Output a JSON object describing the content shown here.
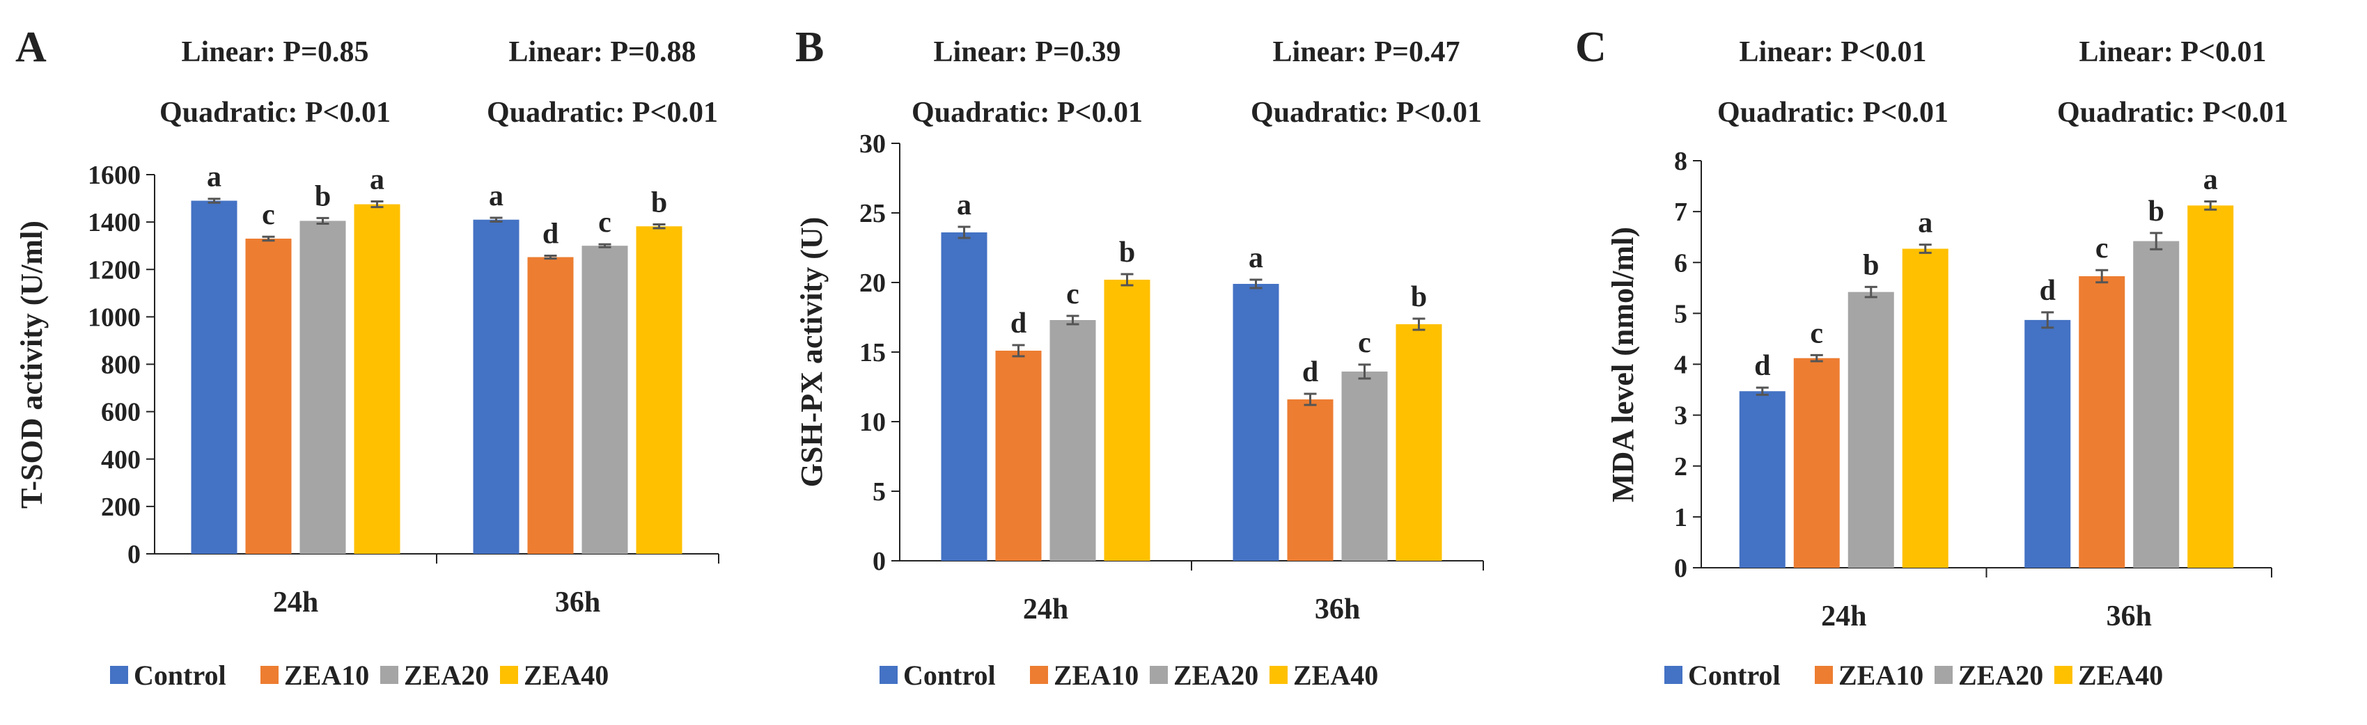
{
  "figure": {
    "series_names": [
      "Control",
      "ZEA10",
      "ZEA20",
      "ZEA40"
    ],
    "series_colors": [
      "#4472C4",
      "#ED7D31",
      "#A5A5A5",
      "#FFC000"
    ],
    "axis_color": "#222222",
    "error_bar_color": "#555555"
  },
  "chart_data": [
    {
      "type": "bar",
      "panel_label": "A",
      "ylabel": "T-SOD activity (U/ml)",
      "ylim": [
        0,
        1600
      ],
      "ytick_step": 200,
      "yticks": [
        "0",
        "200",
        "400",
        "600",
        "800",
        "1000",
        "1200",
        "1400",
        "1600"
      ],
      "categories": [
        "24h",
        "36h"
      ],
      "stats": [
        {
          "linear": "Linear: P=0.85",
          "quadratic": "Quadratic: P<0.01"
        },
        {
          "linear": "Linear: P=0.88",
          "quadratic": "Quadratic: P<0.01"
        }
      ],
      "series": [
        {
          "name": "Control",
          "values": [
            1490,
            1410
          ],
          "errors": [
            8,
            8
          ],
          "letters": [
            "a",
            "a"
          ]
        },
        {
          "name": "ZEA10",
          "values": [
            1330,
            1252
          ],
          "errors": [
            8,
            6
          ],
          "letters": [
            "c",
            "d"
          ]
        },
        {
          "name": "ZEA20",
          "values": [
            1405,
            1300
          ],
          "errors": [
            12,
            6
          ],
          "letters": [
            "b",
            "c"
          ]
        },
        {
          "name": "ZEA40",
          "values": [
            1475,
            1382
          ],
          "errors": [
            12,
            8
          ],
          "letters": [
            "a",
            "b"
          ]
        }
      ]
    },
    {
      "type": "bar",
      "panel_label": "B",
      "ylabel": "GSH-PX activity (U)",
      "ylim": [
        0,
        30
      ],
      "ytick_step": 5,
      "yticks": [
        "0",
        "5",
        "10",
        "15",
        "20",
        "25",
        "30"
      ],
      "categories": [
        "24h",
        "36h"
      ],
      "stats": [
        {
          "linear": "Linear: P=0.39",
          "quadratic": "Quadratic: P<0.01"
        },
        {
          "linear": "Linear: P=0.47",
          "quadratic": "Quadratic: P<0.01"
        }
      ],
      "series": [
        {
          "name": "Control",
          "values": [
            23.6,
            19.9
          ],
          "errors": [
            0.4,
            0.3
          ],
          "letters": [
            "a",
            "a"
          ]
        },
        {
          "name": "ZEA10",
          "values": [
            15.1,
            11.6
          ],
          "errors": [
            0.4,
            0.4
          ],
          "letters": [
            "d",
            "d"
          ]
        },
        {
          "name": "ZEA20",
          "values": [
            17.3,
            13.6
          ],
          "errors": [
            0.3,
            0.5
          ],
          "letters": [
            "c",
            "c"
          ]
        },
        {
          "name": "ZEA40",
          "values": [
            20.2,
            17.0
          ],
          "errors": [
            0.4,
            0.4
          ],
          "letters": [
            "b",
            "b"
          ]
        }
      ]
    },
    {
      "type": "bar",
      "panel_label": "C",
      "ylabel": "MDA level (nmol/ml)",
      "ylim": [
        0,
        8
      ],
      "ytick_step": 1,
      "yticks": [
        "0",
        "1",
        "2",
        "3",
        "4",
        "5",
        "6",
        "7",
        "8"
      ],
      "categories": [
        "24h",
        "36h"
      ],
      "stats": [
        {
          "linear": "Linear: P<0.01",
          "quadratic": "Quadratic: P<0.01"
        },
        {
          "linear": "Linear: P<0.01",
          "quadratic": "Quadratic: P<0.01"
        }
      ],
      "series": [
        {
          "name": "Control",
          "values": [
            3.47,
            4.87
          ],
          "errors": [
            0.07,
            0.15
          ],
          "letters": [
            "d",
            "d"
          ]
        },
        {
          "name": "ZEA10",
          "values": [
            4.12,
            5.73
          ],
          "errors": [
            0.06,
            0.12
          ],
          "letters": [
            "c",
            "c"
          ]
        },
        {
          "name": "ZEA20",
          "values": [
            5.42,
            6.42
          ],
          "errors": [
            0.1,
            0.16
          ],
          "letters": [
            "b",
            "b"
          ]
        },
        {
          "name": "ZEA40",
          "values": [
            6.27,
            7.12
          ],
          "errors": [
            0.08,
            0.08
          ],
          "letters": [
            "a",
            "a"
          ]
        }
      ]
    }
  ]
}
